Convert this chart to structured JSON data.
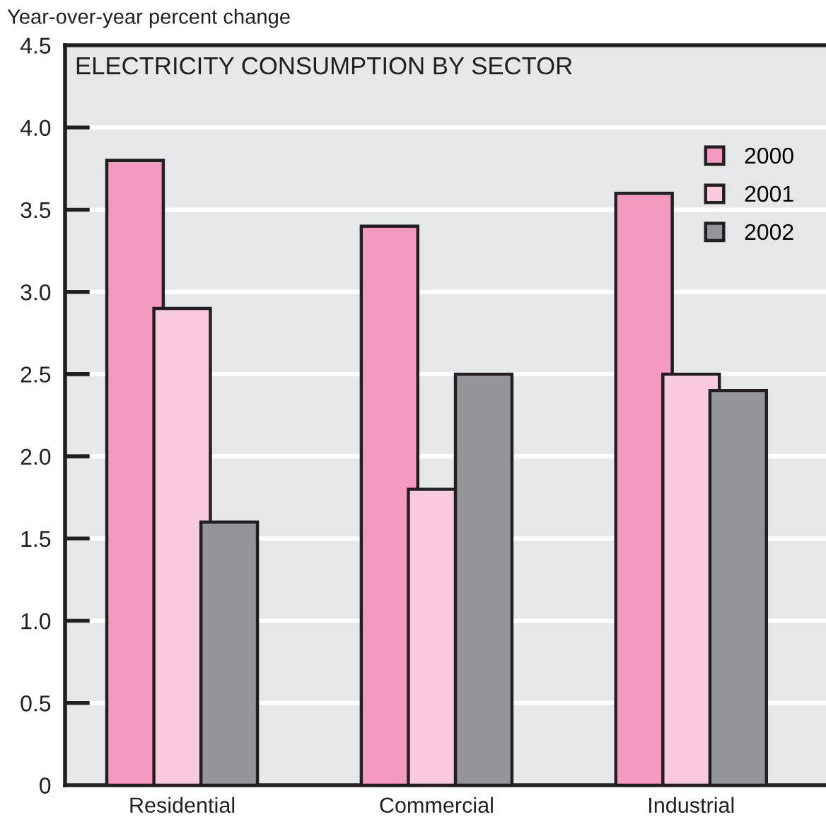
{
  "chart_data": {
    "type": "bar",
    "title": "ELECTRICITY CONSUMPTION BY SECTOR",
    "ylabel": "Year-over-year percent change",
    "categories": [
      "Residential",
      "Commercial",
      "Industrial"
    ],
    "series": [
      {
        "name": "2000",
        "color": "#f49ac1",
        "values": [
          3.8,
          3.4,
          3.6
        ]
      },
      {
        "name": "2001",
        "color": "#f9c9de",
        "values": [
          2.9,
          1.8,
          2.5
        ]
      },
      {
        "name": "2002",
        "color": "#939598",
        "values": [
          1.6,
          2.5,
          2.4
        ]
      }
    ],
    "ylim": [
      0,
      4.5
    ],
    "yticks": [
      0,
      0.5,
      {
        "value": 1,
        "label": "1.0"
      },
      1.5,
      {
        "value": 2,
        "label": "2.0"
      },
      2.5,
      {
        "value": 3,
        "label": "3.0"
      },
      3.5,
      {
        "value": 4,
        "label": "4.0"
      },
      4.5
    ],
    "grid": "y",
    "legend": "top right"
  }
}
